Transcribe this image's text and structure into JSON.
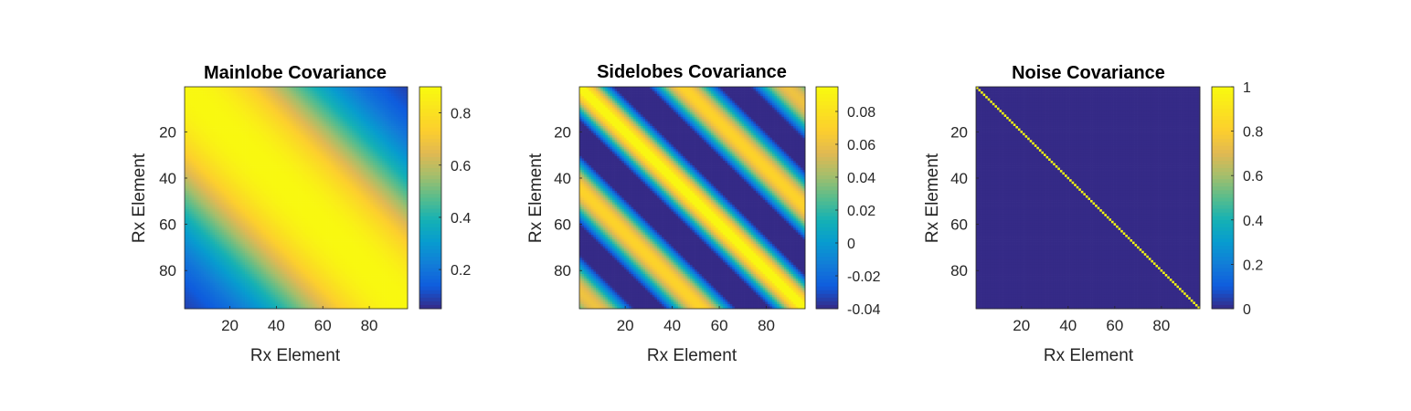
{
  "chart_data": [
    {
      "type": "heatmap",
      "title": "Mainlobe Covariance",
      "xlabel": "Rx Element",
      "ylabel": "Rx Element",
      "size": 96,
      "x_ticks": [
        "20",
        "40",
        "60",
        "80"
      ],
      "y_ticks": [
        "20",
        "40",
        "60",
        "80"
      ],
      "colorbar": {
        "range": [
          0.05,
          0.9
        ],
        "ticks": [
          "0.2",
          "0.4",
          "0.6",
          "0.8"
        ],
        "tick_values": [
          0.2,
          0.4,
          0.6,
          0.8
        ]
      },
      "pattern": "toeplitz: value depends on |i-j|; ~0.88 on diagonal band, decreasing smoothly to ~0.05 at far corners (i=1,j=96)"
    },
    {
      "type": "heatmap",
      "title": "Sidelobes Covariance",
      "xlabel": "Rx Element",
      "ylabel": "Rx Element",
      "size": 96,
      "x_ticks": [
        "20",
        "40",
        "60",
        "80"
      ],
      "y_ticks": [
        "20",
        "40",
        "60",
        "80"
      ],
      "colorbar": {
        "range": [
          -0.04,
          0.095
        ],
        "ticks": [
          "0.08",
          "0.06",
          "0.04",
          "0.02",
          "0",
          "-0.02",
          "-0.04"
        ],
        "tick_values": [
          0.08,
          0.06,
          0.04,
          0.02,
          0,
          -0.02,
          -0.04
        ]
      },
      "pattern": "toeplitz: ~0.09 on diagonal, dips to ~-0.04 near |i-j|=20, rises to ~0.03 near |i-j|=55, back near -0.03 at corners"
    },
    {
      "type": "heatmap",
      "title": "Noise Covariance",
      "xlabel": "Rx Element",
      "ylabel": "Rx Element",
      "size": 96,
      "x_ticks": [
        "20",
        "40",
        "60",
        "80"
      ],
      "y_ticks": [
        "20",
        "40",
        "60",
        "80"
      ],
      "colorbar": {
        "range": [
          0,
          1
        ],
        "ticks": [
          "1",
          "0.8",
          "0.6",
          "0.4",
          "0.2",
          "0"
        ],
        "tick_values": [
          1,
          0.8,
          0.6,
          0.4,
          0.2,
          0
        ]
      },
      "pattern": "identity matrix: 1 on diagonal, 0 elsewhere"
    }
  ]
}
